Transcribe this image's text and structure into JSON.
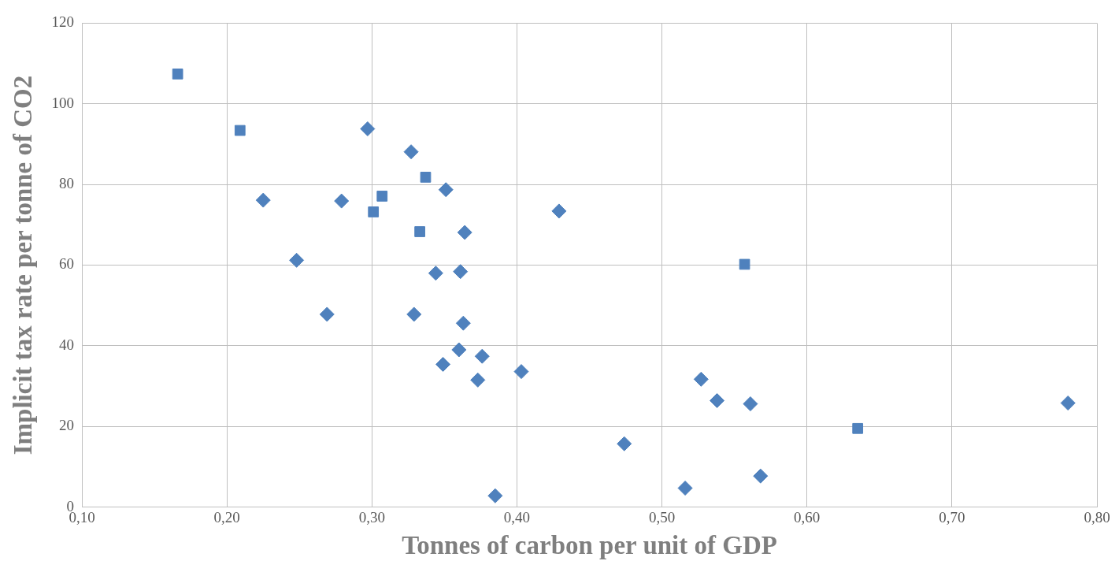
{
  "chart_data": {
    "type": "scatter",
    "xlabel": "Tonnes of carbon per unit of GDP",
    "ylabel": "Implicit tax rate per tonne of CO2",
    "xlim": [
      0.1,
      0.8
    ],
    "xticks": [
      {
        "value": 0.1,
        "label": "0,10"
      },
      {
        "value": 0.2,
        "label": "0,20"
      },
      {
        "value": 0.3,
        "label": "0,30"
      },
      {
        "value": 0.4,
        "label": "0,40"
      },
      {
        "value": 0.5,
        "label": "0,50"
      },
      {
        "value": 0.6,
        "label": "0,60"
      },
      {
        "value": 0.7,
        "label": "0,70"
      },
      {
        "value": 0.8,
        "label": "0,80"
      }
    ],
    "ylim": [
      0,
      120
    ],
    "yticks": [
      0,
      20,
      40,
      60,
      80,
      100,
      120
    ],
    "grid": true,
    "legend": false,
    "series": [
      {
        "color": "#4f81bd",
        "marker": "diamond",
        "x": [
          0.297,
          0.327,
          0.225,
          0.279,
          0.351,
          0.429,
          0.364,
          0.248,
          0.344,
          0.361,
          0.269,
          0.329,
          0.363,
          0.36,
          0.376,
          0.349,
          0.403,
          0.373,
          0.527,
          0.538,
          0.561,
          0.78,
          0.474,
          0.516,
          0.568,
          0.385
        ],
        "values": [
          93.8,
          88.1,
          76.1,
          75.9,
          78.7,
          73.4,
          68.1,
          61.2,
          58.0,
          58.4,
          47.8,
          47.8,
          45.6,
          39.0,
          37.4,
          35.4,
          33.6,
          31.5,
          31.7,
          26.4,
          25.6,
          25.8,
          15.7,
          4.7,
          7.7,
          2.8
        ]
      },
      {
        "color": "#4f81bd",
        "marker": "square",
        "x": [
          0.166,
          0.209,
          0.337,
          0.307,
          0.301,
          0.333,
          0.557,
          0.635
        ],
        "values": [
          107.4,
          93.4,
          81.8,
          77.1,
          73.2,
          68.3,
          60.2,
          19.5
        ]
      }
    ]
  }
}
